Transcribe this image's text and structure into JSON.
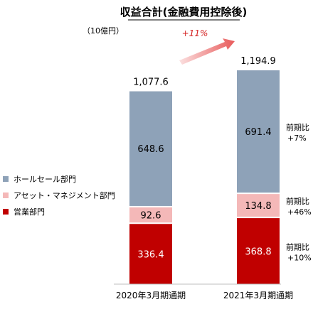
{
  "chart_data": {
    "type": "bar",
    "stacked": true,
    "title": "収益合計(金融費用控除後)",
    "unit_label": "（10億円）",
    "categories": [
      "2020年3月期通期",
      "2021年3月期通期"
    ],
    "series": [
      {
        "name": "営業部門",
        "values": [
          336.4,
          368.8
        ],
        "color": "#c00000",
        "label_color": "#ffffff"
      },
      {
        "name": "アセット・マネジメント部門",
        "values": [
          92.6,
          134.8
        ],
        "color": "#f4b8b8",
        "label_color": "#000000"
      },
      {
        "name": "ホールセール部門",
        "values": [
          648.6,
          691.4
        ],
        "color": "#8ea2b8",
        "label_color": "#000000"
      }
    ],
    "totals": [
      "1,077.6",
      "1,194.9"
    ],
    "growth_label": "+11%",
    "yoy_labels": [
      {
        "series": "ホールセール部門",
        "text1": "前期比",
        "text2": "+7%"
      },
      {
        "series": "アセット・マネジメント部門",
        "text1": "前期比",
        "text2": "+46%"
      },
      {
        "series": "営業部門",
        "text1": "前期比",
        "text2": "+10%"
      }
    ],
    "legend_order": [
      "ホールセール部門",
      "アセット・マネジメント部門",
      "営業部門"
    ],
    "legend_position": "left",
    "grid": false
  }
}
